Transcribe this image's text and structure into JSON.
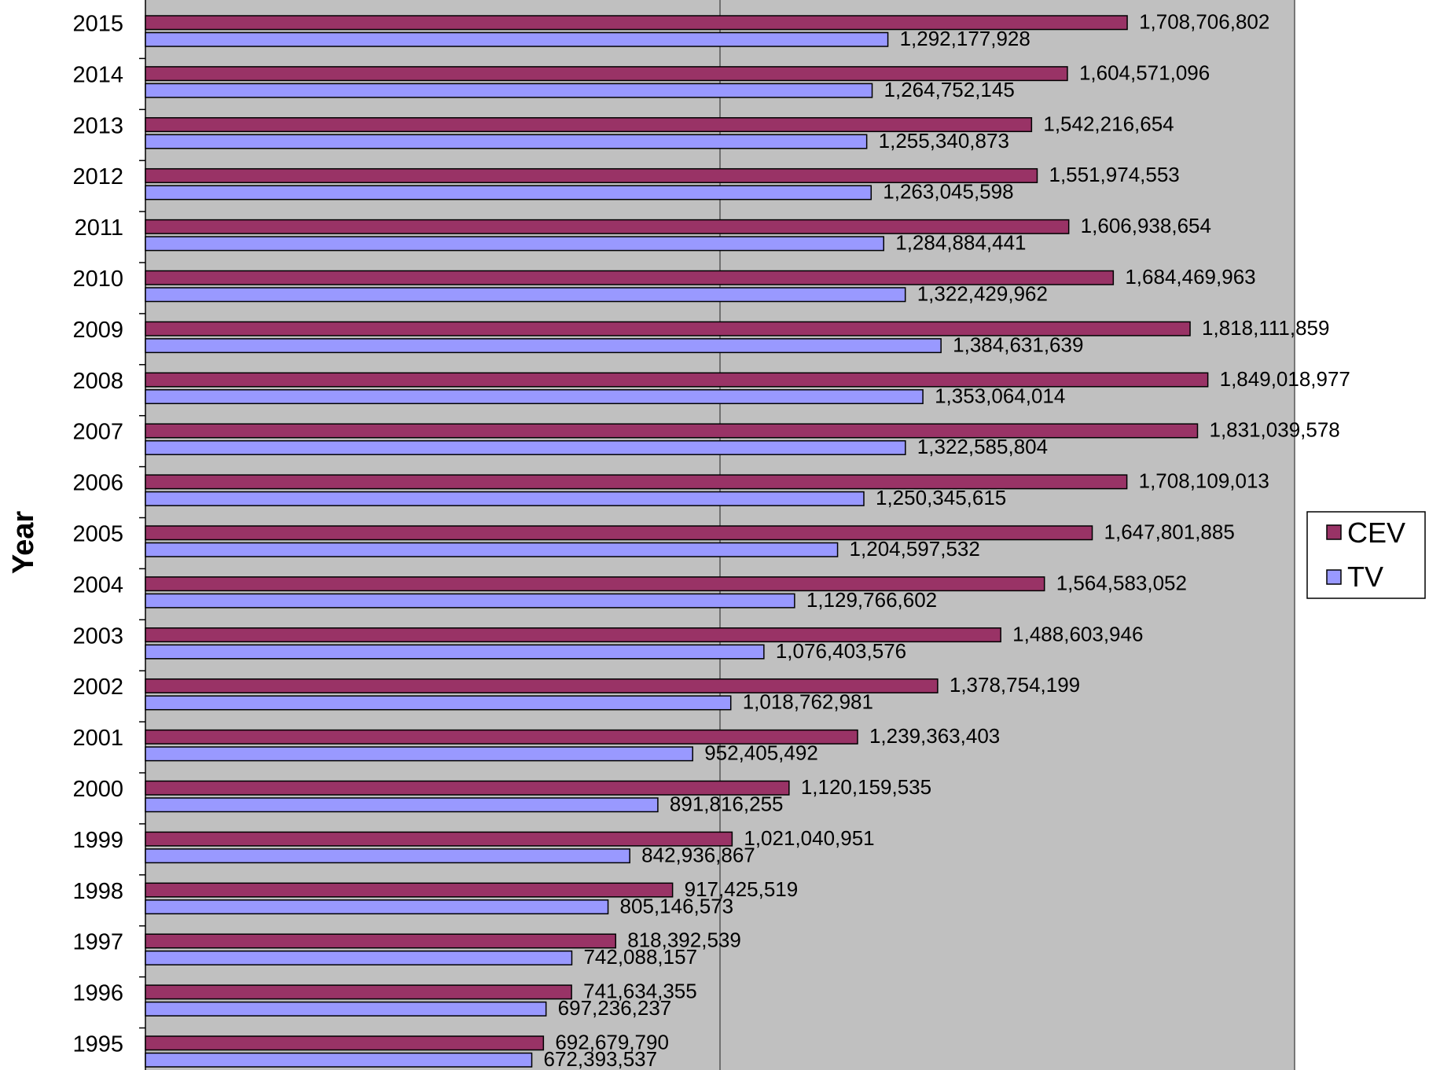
{
  "chart_data": {
    "type": "bar",
    "orientation": "horizontal",
    "title": "",
    "xlabel": "",
    "ylabel": "Year",
    "categories": [
      "2015",
      "2014",
      "2013",
      "2012",
      "2011",
      "2010",
      "2009",
      "2008",
      "2007",
      "2006",
      "2005",
      "2004",
      "2003",
      "2002",
      "2001",
      "2000",
      "1999",
      "1998",
      "1997",
      "1996",
      "1995"
    ],
    "series": [
      {
        "name": "CEV",
        "color": "#993366",
        "values": [
          1708706802,
          1604571096,
          1542216654,
          1551974553,
          1606938654,
          1684469963,
          1818111859,
          1849018977,
          1831039578,
          1708109013,
          1647801885,
          1564583052,
          1488603946,
          1378754199,
          1239363403,
          1120159535,
          1021040951,
          917425519,
          818392539,
          741634355,
          692679790
        ],
        "labels": [
          "1,708,706,802",
          "1,604,571,096",
          "1,542,216,654",
          "1,551,974,553",
          "1,606,938,654",
          "1,684,469,963",
          "1,818,111,859",
          "1,849,018,977",
          "1,831,039,578",
          "1,708,109,013",
          "1,647,801,885",
          "1,564,583,052",
          "1,488,603,946",
          "1,378,754,199",
          "1,239,363,403",
          "1,120,159,535",
          "1,021,040,951",
          "917,425,519",
          "818,392,539",
          "741,634,355",
          "692,679,790"
        ]
      },
      {
        "name": "TV",
        "color": "#9999ff",
        "values": [
          1292177928,
          1264752145,
          1255340873,
          1263045598,
          1284884441,
          1322429962,
          1384631639,
          1353064014,
          1322585804,
          1250345615,
          1204597532,
          1129766602,
          1076403576,
          1018762981,
          952405492,
          891816255,
          842936867,
          805146573,
          742088157,
          697236237,
          672393537
        ],
        "labels": [
          "1,292,177,928",
          "1,264,752,145",
          "1,255,340,873",
          "1,263,045,598",
          "1,284,884,441",
          "1,322,429,962",
          "1,384,631,639",
          "1,353,064,014",
          "1,322,585,804",
          "1,250,345,615",
          "1,204,597,532",
          "1,129,766,602",
          "1,076,403,576",
          "1,018,762,981",
          "952,405,492",
          "891,816,255",
          "842,936,867",
          "805,146,573",
          "742,088,157",
          "697,236,237",
          "672,393,537"
        ]
      }
    ],
    "xlim": [
      0,
      2000000000
    ],
    "gridlines_x": [
      1000000000
    ],
    "plot_background": "#c0c0c0",
    "legend_position": "right"
  }
}
